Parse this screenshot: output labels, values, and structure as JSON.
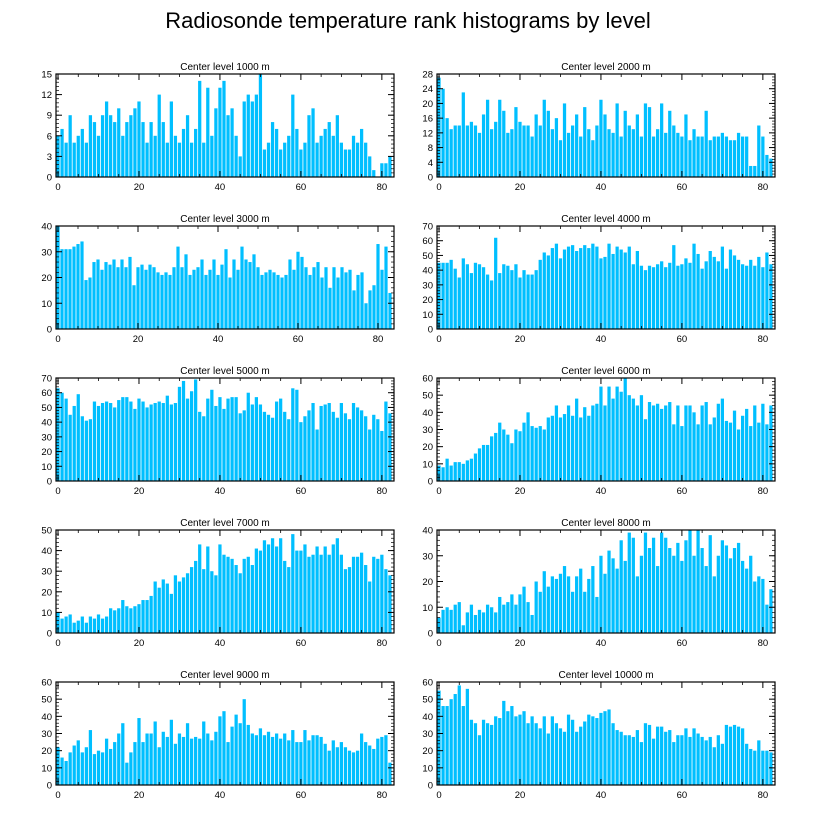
{
  "title": "Radiosonde temperature rank histograms by level",
  "colors": {
    "bar": "#00BFFF",
    "axis": "#000000",
    "background": "#FFFFFF"
  },
  "chart_data": [
    {
      "type": "bar",
      "title": "Center level 1000 m",
      "x_start": 0,
      "xticks": [
        0,
        20,
        40,
        60,
        80
      ],
      "yticks": [
        0,
        3,
        6,
        9,
        12,
        15
      ],
      "ylim": [
        0,
        15
      ],
      "values": [
        6,
        7,
        5,
        9,
        5,
        6,
        7,
        5,
        9,
        8,
        6,
        9,
        11,
        9,
        8,
        10,
        6,
        8,
        9,
        10,
        11,
        8,
        5,
        8,
        6,
        12,
        8,
        5,
        11,
        6,
        5,
        7,
        9,
        5,
        7,
        14,
        5,
        13,
        6,
        10,
        13,
        14,
        9,
        10,
        6,
        3,
        11,
        12,
        11,
        12,
        15,
        4,
        5,
        8,
        7,
        4,
        5,
        6,
        12,
        7,
        4,
        5,
        9,
        10,
        5,
        6,
        7,
        8,
        6,
        9,
        5,
        4,
        4,
        6,
        5,
        7,
        5,
        3,
        1,
        0,
        2,
        2,
        3
      ]
    },
    {
      "type": "bar",
      "title": "Center level 2000 m",
      "x_start": 0,
      "xticks": [
        0,
        20,
        40,
        60,
        80
      ],
      "yticks": [
        0,
        4,
        8,
        12,
        16,
        20,
        24,
        28
      ],
      "ylim": [
        0,
        28
      ],
      "values": [
        27,
        24,
        16,
        13,
        14,
        14,
        23,
        14,
        15,
        14,
        12,
        17,
        21,
        13,
        15,
        21,
        18,
        12,
        13,
        19,
        15,
        14,
        14,
        11,
        17,
        14,
        21,
        18,
        13,
        16,
        10,
        20,
        12,
        14,
        17,
        11,
        19,
        13,
        10,
        14,
        21,
        17,
        13,
        12,
        20,
        11,
        18,
        14,
        13,
        17,
        11,
        20,
        19,
        11,
        13,
        20,
        12,
        18,
        14,
        12,
        11,
        17,
        10,
        13,
        11,
        11,
        18,
        10,
        11,
        11,
        12,
        11,
        10,
        10,
        12,
        11,
        11,
        3,
        3,
        14,
        11,
        6,
        5
      ]
    },
    {
      "type": "bar",
      "title": "Center level 3000 m",
      "x_start": 0,
      "xticks": [
        0,
        20,
        40,
        60,
        80
      ],
      "yticks": [
        0,
        10,
        20,
        30,
        40
      ],
      "ylim": [
        0,
        40
      ],
      "values": [
        41,
        31,
        31,
        31,
        32,
        33,
        34,
        19,
        20,
        26,
        27,
        23,
        26,
        25,
        27,
        24,
        27,
        24,
        28,
        17,
        24,
        25,
        23,
        25,
        24,
        22,
        21,
        22,
        21,
        24,
        32,
        24,
        29,
        21,
        23,
        24,
        27,
        21,
        23,
        27,
        21,
        25,
        31,
        20,
        27,
        23,
        32,
        27,
        26,
        29,
        24,
        21,
        22,
        23,
        22,
        21,
        20,
        21,
        27,
        23,
        30,
        28,
        24,
        21,
        24,
        26,
        20,
        24,
        16,
        24,
        20,
        24,
        22,
        23,
        15,
        21,
        22,
        10,
        15,
        17,
        33,
        23,
        32,
        14
      ]
    },
    {
      "type": "bar",
      "title": "Center level 4000 m",
      "x_start": 0,
      "xticks": [
        0,
        20,
        40,
        60,
        80
      ],
      "yticks": [
        0,
        10,
        20,
        30,
        40,
        50,
        60,
        70
      ],
      "ylim": [
        0,
        70
      ],
      "values": [
        45,
        45,
        45,
        47,
        41,
        35,
        48,
        44,
        38,
        45,
        44,
        42,
        37,
        33,
        62,
        38,
        44,
        43,
        40,
        44,
        35,
        40,
        37,
        37,
        40,
        47,
        52,
        50,
        55,
        58,
        48,
        54,
        56,
        57,
        53,
        55,
        57,
        55,
        58,
        56,
        48,
        49,
        58,
        51,
        56,
        54,
        52,
        56,
        44,
        53,
        43,
        40,
        43,
        42,
        44,
        46,
        42,
        45,
        57,
        43,
        44,
        48,
        45,
        58,
        51,
        41,
        46,
        53,
        49,
        46,
        56,
        41,
        54,
        50,
        47,
        44,
        43,
        47,
        43,
        49,
        42,
        52,
        44
      ]
    },
    {
      "type": "bar",
      "title": "Center level 5000 m",
      "x_start": 0,
      "xticks": [
        0,
        20,
        40,
        60,
        80
      ],
      "yticks": [
        0,
        10,
        20,
        30,
        40,
        50,
        60,
        70
      ],
      "ylim": [
        0,
        70
      ],
      "values": [
        63,
        60,
        56,
        45,
        51,
        59,
        44,
        41,
        42,
        54,
        51,
        53,
        54,
        53,
        50,
        55,
        57,
        57,
        54,
        49,
        56,
        54,
        50,
        52,
        53,
        54,
        53,
        58,
        52,
        53,
        64,
        68,
        56,
        61,
        69,
        47,
        44,
        56,
        62,
        51,
        57,
        49,
        56,
        57,
        57,
        46,
        48,
        60,
        52,
        57,
        52,
        47,
        45,
        43,
        54,
        56,
        47,
        42,
        63,
        62,
        40,
        44,
        48,
        53,
        35,
        51,
        52,
        53,
        47,
        43,
        53,
        46,
        42,
        53,
        50,
        48,
        44,
        35,
        45,
        42,
        34,
        54,
        46
      ]
    },
    {
      "type": "bar",
      "title": "Center level 6000 m",
      "x_start": 0,
      "xticks": [
        0,
        20,
        40,
        60,
        80
      ],
      "yticks": [
        0,
        10,
        20,
        30,
        40,
        50,
        60
      ],
      "ylim": [
        0,
        60
      ],
      "values": [
        9,
        8,
        13,
        9,
        11,
        11,
        10,
        12,
        13,
        16,
        19,
        21,
        21,
        26,
        28,
        34,
        30,
        27,
        22,
        30,
        29,
        34,
        40,
        32,
        31,
        32,
        30,
        37,
        38,
        44,
        37,
        39,
        44,
        38,
        48,
        37,
        43,
        38,
        44,
        45,
        55,
        44,
        55,
        48,
        55,
        52,
        60,
        50,
        48,
        44,
        50,
        36,
        46,
        44,
        45,
        42,
        44,
        46,
        33,
        44,
        32,
        44,
        44,
        40,
        33,
        44,
        46,
        33,
        37,
        45,
        48,
        35,
        34,
        41,
        30,
        38,
        42,
        32,
        44,
        34,
        45,
        33,
        44
      ]
    },
    {
      "type": "bar",
      "title": "Center level 7000 m",
      "x_start": 0,
      "xticks": [
        0,
        20,
        40,
        60,
        80
      ],
      "yticks": [
        0,
        10,
        20,
        30,
        40,
        50
      ],
      "ylim": [
        0,
        50
      ],
      "values": [
        10,
        7,
        8,
        9,
        5,
        6,
        8,
        5,
        8,
        7,
        9,
        7,
        8,
        12,
        11,
        12,
        16,
        13,
        12,
        13,
        14,
        16,
        16,
        18,
        25,
        22,
        26,
        24,
        19,
        28,
        25,
        27,
        29,
        32,
        35,
        43,
        31,
        42,
        30,
        28,
        43,
        38,
        37,
        36,
        33,
        29,
        36,
        37,
        33,
        41,
        40,
        45,
        43,
        46,
        42,
        46,
        35,
        32,
        48,
        40,
        40,
        43,
        37,
        38,
        42,
        38,
        42,
        38,
        43,
        46,
        38,
        31,
        32,
        37,
        37,
        39,
        33,
        25,
        37,
        36,
        38,
        31,
        28
      ]
    },
    {
      "type": "bar",
      "title": "Center level 8000 m",
      "x_start": 0,
      "xticks": [
        0,
        20,
        40,
        60,
        80
      ],
      "yticks": [
        0,
        10,
        20,
        30,
        40
      ],
      "ylim": [
        0,
        40
      ],
      "values": [
        6,
        9,
        10,
        9,
        11,
        12,
        3,
        8,
        11,
        7,
        9,
        8,
        11,
        10,
        8,
        14,
        11,
        12,
        15,
        11,
        15,
        18,
        12,
        7,
        20,
        16,
        24,
        18,
        22,
        21,
        23,
        26,
        22,
        16,
        22,
        25,
        16,
        21,
        26,
        14,
        30,
        23,
        32,
        29,
        25,
        36,
        28,
        39,
        37,
        22,
        30,
        39,
        33,
        37,
        26,
        39,
        37,
        33,
        30,
        35,
        28,
        36,
        40,
        30,
        40,
        33,
        26,
        38,
        22,
        30,
        36,
        34,
        29,
        33,
        35,
        28,
        25,
        30,
        20,
        22,
        21,
        11,
        17
      ]
    },
    {
      "type": "bar",
      "title": "Center level 9000 m",
      "x_start": 0,
      "xticks": [
        0,
        20,
        40,
        60,
        80
      ],
      "yticks": [
        0,
        10,
        20,
        30,
        40,
        50,
        60
      ],
      "ylim": [
        0,
        60
      ],
      "values": [
        22,
        16,
        14,
        19,
        23,
        26,
        19,
        22,
        32,
        18,
        20,
        19,
        27,
        21,
        25,
        30,
        36,
        13,
        19,
        25,
        39,
        25,
        30,
        30,
        37,
        22,
        31,
        28,
        38,
        24,
        30,
        28,
        36,
        27,
        28,
        27,
        37,
        30,
        26,
        31,
        40,
        43,
        25,
        34,
        41,
        36,
        50,
        35,
        30,
        29,
        33,
        29,
        31,
        28,
        30,
        27,
        30,
        26,
        32,
        25,
        25,
        32,
        26,
        29,
        29,
        28,
        24,
        20,
        26,
        22,
        25,
        22,
        20,
        19,
        20,
        30,
        25,
        23,
        21,
        27,
        28,
        29,
        13
      ]
    },
    {
      "type": "bar",
      "title": "Center level 10000 m",
      "x_start": 0,
      "xticks": [
        0,
        20,
        40,
        60,
        80
      ],
      "yticks": [
        0,
        10,
        20,
        30,
        40,
        50,
        60
      ],
      "ylim": [
        0,
        60
      ],
      "values": [
        55,
        46,
        46,
        50,
        53,
        58,
        46,
        56,
        38,
        36,
        29,
        38,
        36,
        35,
        40,
        39,
        49,
        43,
        46,
        40,
        41,
        43,
        36,
        40,
        36,
        33,
        40,
        30,
        40,
        36,
        33,
        31,
        41,
        38,
        31,
        34,
        37,
        41,
        40,
        39,
        42,
        43,
        44,
        36,
        32,
        31,
        29,
        29,
        28,
        32,
        25,
        36,
        35,
        27,
        34,
        34,
        31,
        32,
        25,
        29,
        29,
        33,
        28,
        33,
        30,
        28,
        26,
        28,
        22,
        29,
        24,
        35,
        34,
        35,
        34,
        33,
        24,
        21,
        20,
        26,
        20,
        20,
        19
      ]
    }
  ]
}
